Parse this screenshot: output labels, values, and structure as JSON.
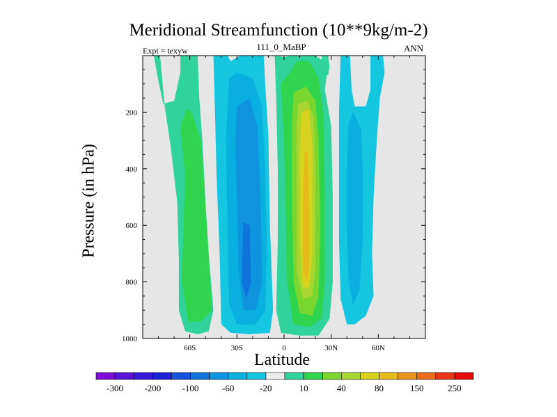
{
  "chart_data": {
    "type": "heatmap",
    "title": "Meridional Streamfunction (10**9kg/m-2)",
    "left_annotation": "Expt = texyw",
    "subtitle": "111_0_MaBP",
    "right_annotation": "ANN",
    "xlabel": "Latitude",
    "ylabel": "Pressure (in hPa)",
    "xlim": [
      -90,
      90
    ],
    "ylim": [
      1000,
      0
    ],
    "x_ticks": [
      {
        "value": -60,
        "label": "60S"
      },
      {
        "value": -30,
        "label": "30S"
      },
      {
        "value": 0,
        "label": "0"
      },
      {
        "value": 30,
        "label": "30N"
      },
      {
        "value": 60,
        "label": "60N"
      }
    ],
    "y_ticks": [
      {
        "value": 200,
        "label": "200"
      },
      {
        "value": 400,
        "label": "400"
      },
      {
        "value": 600,
        "label": "600"
      },
      {
        "value": 800,
        "label": "800"
      },
      {
        "value": 1000,
        "label": "1000"
      }
    ],
    "background_color": "#e6e6e6",
    "colorbar": {
      "colors": [
        "#7d0cd6",
        "#5a11d6",
        "#3a17dc",
        "#1f1fd8",
        "#1654dc",
        "#0e74dc",
        "#0f94e0",
        "#09afdf",
        "#14c6df",
        "#ececec",
        "#2fd39b",
        "#2fd64d",
        "#78d62f",
        "#a6d62f",
        "#d7d21e",
        "#e6ba1a",
        "#e9951c",
        "#eb6a17",
        "#e8361a",
        "#e60c0c"
      ],
      "labels": [
        "-300",
        "-200",
        "-100",
        "-60",
        "-20",
        "10",
        "40",
        "80",
        "150",
        "250"
      ]
    },
    "fields": [
      {
        "name": "sh-positive-cell",
        "color": "#2fd39b",
        "outline": [
          [
            -83,
            0
          ],
          [
            -79,
            0
          ],
          [
            -78,
            60
          ],
          [
            -76,
            180
          ],
          [
            -72,
            330
          ],
          [
            -68,
            520
          ],
          [
            -67,
            720
          ],
          [
            -67,
            900
          ],
          [
            -63,
            975
          ],
          [
            -55,
            985
          ],
          [
            -48,
            975
          ],
          [
            -45,
            900
          ],
          [
            -48,
            700
          ],
          [
            -50,
            520
          ],
          [
            -52,
            300
          ],
          [
            -54,
            150
          ],
          [
            -55,
            0
          ],
          [
            -66,
            0
          ],
          [
            -66,
            60
          ],
          [
            -70,
            160
          ],
          [
            -77,
            170
          ],
          [
            -80,
            90
          ]
        ]
      },
      {
        "name": "sh-positive-core",
        "color": "#2fd64d",
        "outline": [
          [
            -66,
            250
          ],
          [
            -62,
            190
          ],
          [
            -59,
            200
          ],
          [
            -53,
            300
          ],
          [
            -51,
            450
          ],
          [
            -48,
            700
          ],
          [
            -46,
            900
          ],
          [
            -53,
            940
          ],
          [
            -61,
            940
          ],
          [
            -65,
            800
          ],
          [
            -64,
            600
          ],
          [
            -63,
            420
          ]
        ]
      },
      {
        "name": "sh-negative-cell",
        "color": "#14c6df",
        "outline": [
          [
            -45,
            0
          ],
          [
            -36,
            0
          ],
          [
            -34,
            20
          ],
          [
            -28,
            0
          ],
          [
            -13,
            0
          ],
          [
            -12,
            100
          ],
          [
            -10,
            280
          ],
          [
            -9,
            600
          ],
          [
            -7,
            900
          ],
          [
            -9,
            980
          ],
          [
            -22,
            985
          ],
          [
            -34,
            980
          ],
          [
            -40,
            950
          ],
          [
            -41,
            700
          ],
          [
            -43,
            420
          ],
          [
            -44,
            200
          ]
        ]
      },
      {
        "name": "sh-negative-core",
        "color": "#09afdf",
        "outline": [
          [
            -35,
            80
          ],
          [
            -30,
            60
          ],
          [
            -20,
            80
          ],
          [
            -14,
            180
          ],
          [
            -12,
            400
          ],
          [
            -11,
            700
          ],
          [
            -12,
            900
          ],
          [
            -18,
            950
          ],
          [
            -30,
            950
          ],
          [
            -35,
            880
          ],
          [
            -36,
            600
          ],
          [
            -37,
            300
          ]
        ]
      },
      {
        "name": "sh-negative-center",
        "color": "#0f94e0",
        "outline": [
          [
            -30,
            180
          ],
          [
            -22,
            150
          ],
          [
            -17,
            250
          ],
          [
            -15,
            500
          ],
          [
            -14,
            800
          ],
          [
            -18,
            900
          ],
          [
            -26,
            900
          ],
          [
            -29,
            750
          ],
          [
            -30,
            500
          ],
          [
            -31,
            300
          ]
        ]
      },
      {
        "name": "sh-negative-peak",
        "color": "#0e74dc",
        "outline": [
          [
            -26,
            590
          ],
          [
            -22,
            600
          ],
          [
            -21,
            800
          ],
          [
            -24,
            860
          ],
          [
            -27,
            800
          ]
        ]
      },
      {
        "name": "tropical-cell",
        "color": "#2fd39b",
        "outline": [
          [
            -6,
            0
          ],
          [
            0,
            5
          ],
          [
            5,
            0
          ],
          [
            20,
            0
          ],
          [
            28,
            30
          ],
          [
            26,
            120
          ],
          [
            30,
            250
          ],
          [
            31,
            500
          ],
          [
            31,
            800
          ],
          [
            29,
            930
          ],
          [
            22,
            990
          ],
          [
            10,
            990
          ],
          [
            -2,
            980
          ],
          [
            -5,
            900
          ],
          [
            -4,
            650
          ],
          [
            -4,
            400
          ],
          [
            -5,
            150
          ]
        ]
      },
      {
        "name": "tropical-cell-40",
        "color": "#2fd64d",
        "outline": [
          [
            -2,
            100
          ],
          [
            4,
            60
          ],
          [
            8,
            20
          ],
          [
            16,
            20
          ],
          [
            22,
            80
          ],
          [
            25,
            200
          ],
          [
            26,
            500
          ],
          [
            26,
            800
          ],
          [
            24,
            930
          ],
          [
            16,
            960
          ],
          [
            6,
            950
          ],
          [
            2,
            800
          ],
          [
            1,
            550
          ],
          [
            0,
            300
          ]
        ]
      },
      {
        "name": "tropical-cell-80",
        "color": "#78d62f",
        "outline": [
          [
            6,
            130
          ],
          [
            14,
            110
          ],
          [
            20,
            160
          ],
          [
            22,
            300
          ],
          [
            23,
            600
          ],
          [
            22,
            850
          ],
          [
            18,
            920
          ],
          [
            10,
            910
          ],
          [
            6,
            800
          ],
          [
            5,
            500
          ],
          [
            5,
            250
          ]
        ]
      },
      {
        "name": "tropical-cell-150",
        "color": "#a6d62f",
        "outline": [
          [
            9,
            170
          ],
          [
            15,
            160
          ],
          [
            19,
            220
          ],
          [
            20,
            400
          ],
          [
            20,
            750
          ],
          [
            18,
            850
          ],
          [
            12,
            860
          ],
          [
            8,
            760
          ],
          [
            8,
            450
          ],
          [
            8,
            250
          ]
        ]
      },
      {
        "name": "tropical-cell-250",
        "color": "#d7d21e",
        "outline": [
          [
            11,
            200
          ],
          [
            16,
            190
          ],
          [
            18,
            320
          ],
          [
            18,
            700
          ],
          [
            16,
            820
          ],
          [
            12,
            820
          ],
          [
            10,
            650
          ],
          [
            10,
            350
          ]
        ]
      },
      {
        "name": "tropical-cell-core",
        "color": "#e6ba1a",
        "outline": [
          [
            13,
            330
          ],
          [
            15,
            350
          ],
          [
            16,
            550
          ],
          [
            16,
            760
          ],
          [
            14,
            800
          ],
          [
            12,
            760
          ],
          [
            12,
            550
          ]
        ]
      },
      {
        "name": "nh-negative-cell",
        "color": "#14c6df",
        "outline": [
          [
            36,
            0
          ],
          [
            42,
            0
          ],
          [
            43,
            120
          ],
          [
            45,
            180
          ],
          [
            52,
            180
          ],
          [
            55,
            120
          ],
          [
            55,
            0
          ],
          [
            63,
            0
          ],
          [
            64,
            60
          ],
          [
            61,
            150
          ],
          [
            59,
            300
          ],
          [
            57,
            500
          ],
          [
            56,
            700
          ],
          [
            57,
            850
          ],
          [
            52,
            920
          ],
          [
            45,
            950
          ],
          [
            40,
            950
          ],
          [
            36,
            860
          ],
          [
            35,
            650
          ],
          [
            35,
            400
          ],
          [
            35,
            200
          ]
        ]
      },
      {
        "name": "nh-negative-core",
        "color": "#09afdf",
        "outline": [
          [
            41,
            240
          ],
          [
            44,
            200
          ],
          [
            49,
            260
          ],
          [
            50,
            400
          ],
          [
            50,
            650
          ],
          [
            48,
            830
          ],
          [
            44,
            880
          ],
          [
            41,
            800
          ],
          [
            40,
            600
          ],
          [
            40,
            400
          ]
        ]
      },
      {
        "name": "nh-small-top",
        "color": "#2fd39b",
        "outline": [
          [
            24,
            0
          ],
          [
            28,
            0
          ],
          [
            29,
            40
          ],
          [
            28,
            70
          ],
          [
            24,
            60
          ]
        ]
      },
      {
        "name": "nh-dot",
        "color": "#14c6df",
        "outline": [
          [
            38,
            25
          ],
          [
            39,
            25
          ],
          [
            39,
            45
          ],
          [
            38,
            45
          ]
        ]
      }
    ]
  }
}
